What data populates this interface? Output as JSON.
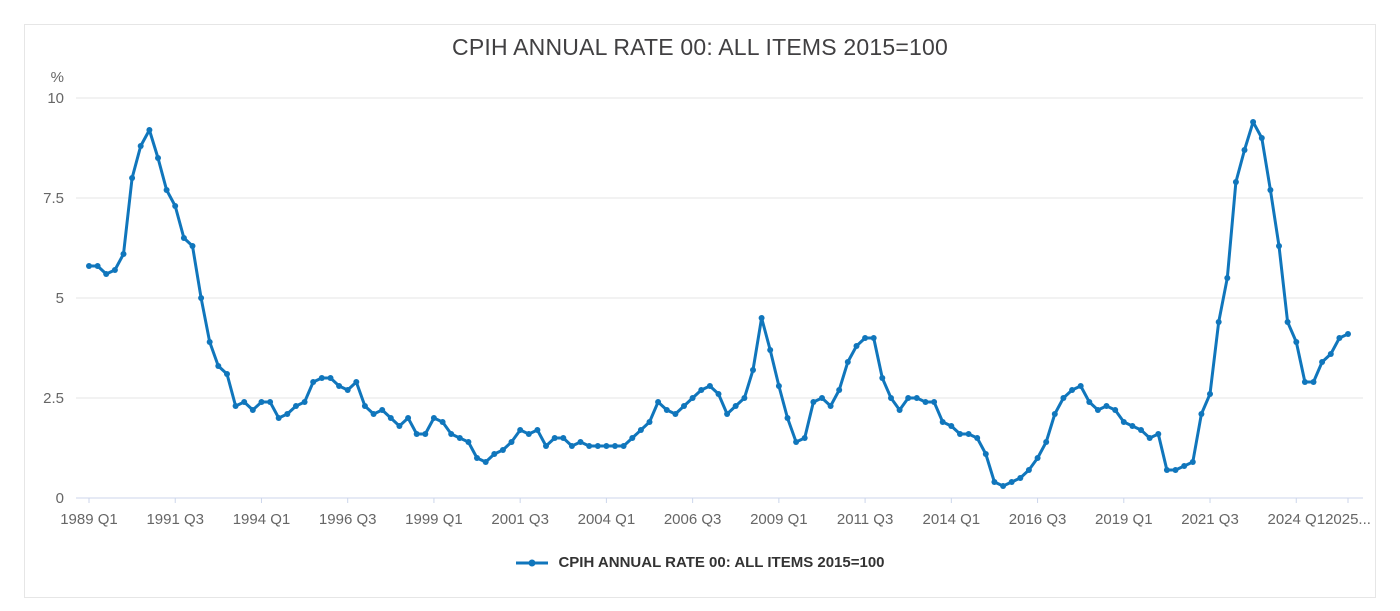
{
  "chart": {
    "title": "CPIH ANNUAL RATE 00: ALL ITEMS 2015=100",
    "unit_label": "%",
    "legend": {
      "label": "CPIH ANNUAL RATE 00: ALL ITEMS 2015=100"
    },
    "colors": {
      "line": "#1076bc",
      "grid": "#e6e6e6",
      "axis": "#ccd6eb",
      "tick_text": "#666666",
      "title_text": "#414042",
      "legend_text": "#333333",
      "panel_border": "#e6e6e6",
      "background": "#ffffff"
    }
  },
  "chart_data": {
    "type": "line",
    "title": "CPIH ANNUAL RATE 00: ALL ITEMS 2015=100",
    "ylabel": "%",
    "ylim": [
      0,
      10
    ],
    "grid": true,
    "legend_position": "bottom",
    "legend": [
      "CPIH ANNUAL RATE 00: ALL ITEMS 2015=100"
    ],
    "frequency": "quarterly",
    "x_start": "1989 Q1",
    "x_end": "2025 Q3",
    "y_ticks": [
      {
        "value": 10,
        "label": "10"
      },
      {
        "value": 7.5,
        "label": "7.5"
      },
      {
        "value": 5,
        "label": "5"
      },
      {
        "value": 2.5,
        "label": "2.5"
      },
      {
        "value": 0,
        "label": "0"
      }
    ],
    "x_ticks": [
      {
        "index": 0,
        "label": "1989 Q1"
      },
      {
        "index": 10,
        "label": "1991 Q3"
      },
      {
        "index": 20,
        "label": "1994 Q1"
      },
      {
        "index": 30,
        "label": "1996 Q3"
      },
      {
        "index": 40,
        "label": "1999 Q1"
      },
      {
        "index": 50,
        "label": "2001 Q3"
      },
      {
        "index": 60,
        "label": "2004 Q1"
      },
      {
        "index": 70,
        "label": "2006 Q3"
      },
      {
        "index": 80,
        "label": "2009 Q1"
      },
      {
        "index": 90,
        "label": "2011 Q3"
      },
      {
        "index": 100,
        "label": "2014 Q1"
      },
      {
        "index": 110,
        "label": "2016 Q3"
      },
      {
        "index": 120,
        "label": "2019 Q1"
      },
      {
        "index": 130,
        "label": "2021 Q3"
      },
      {
        "index": 140,
        "label": "2024 Q1"
      },
      {
        "index": 146,
        "label": "2025..."
      }
    ],
    "series": [
      {
        "name": "CPIH ANNUAL RATE 00: ALL ITEMS 2015=100",
        "values": [
          5.8,
          5.8,
          5.6,
          5.7,
          6.1,
          8.0,
          8.8,
          9.2,
          8.5,
          7.7,
          7.3,
          6.5,
          6.3,
          5.0,
          3.9,
          3.3,
          3.1,
          2.3,
          2.4,
          2.2,
          2.4,
          2.4,
          2.0,
          2.1,
          2.3,
          2.4,
          2.9,
          3.0,
          3.0,
          2.8,
          2.7,
          2.9,
          2.3,
          2.1,
          2.2,
          2.0,
          1.8,
          2.0,
          1.6,
          1.6,
          2.0,
          1.9,
          1.6,
          1.5,
          1.4,
          1.0,
          0.9,
          1.1,
          1.2,
          1.4,
          1.7,
          1.6,
          1.7,
          1.3,
          1.5,
          1.5,
          1.3,
          1.4,
          1.3,
          1.3,
          1.3,
          1.3,
          1.3,
          1.5,
          1.7,
          1.9,
          2.4,
          2.2,
          2.1,
          2.3,
          2.5,
          2.7,
          2.8,
          2.6,
          2.1,
          2.3,
          2.5,
          3.2,
          4.5,
          3.7,
          2.8,
          2.0,
          1.4,
          1.5,
          2.4,
          2.5,
          2.3,
          2.7,
          3.4,
          3.8,
          4.0,
          4.0,
          3.0,
          2.5,
          2.2,
          2.5,
          2.5,
          2.4,
          2.4,
          1.9,
          1.8,
          1.6,
          1.6,
          1.5,
          1.1,
          0.4,
          0.3,
          0.4,
          0.5,
          0.7,
          1.0,
          1.4,
          2.1,
          2.5,
          2.7,
          2.8,
          2.4,
          2.2,
          2.3,
          2.2,
          1.9,
          1.8,
          1.7,
          1.5,
          1.6,
          0.7,
          0.7,
          0.8,
          0.9,
          2.1,
          2.6,
          4.4,
          5.5,
          7.9,
          8.7,
          9.4,
          9.0,
          7.7,
          6.3,
          4.4,
          3.9,
          2.9,
          2.9,
          3.4,
          3.6,
          4.0,
          4.1
        ]
      }
    ]
  }
}
